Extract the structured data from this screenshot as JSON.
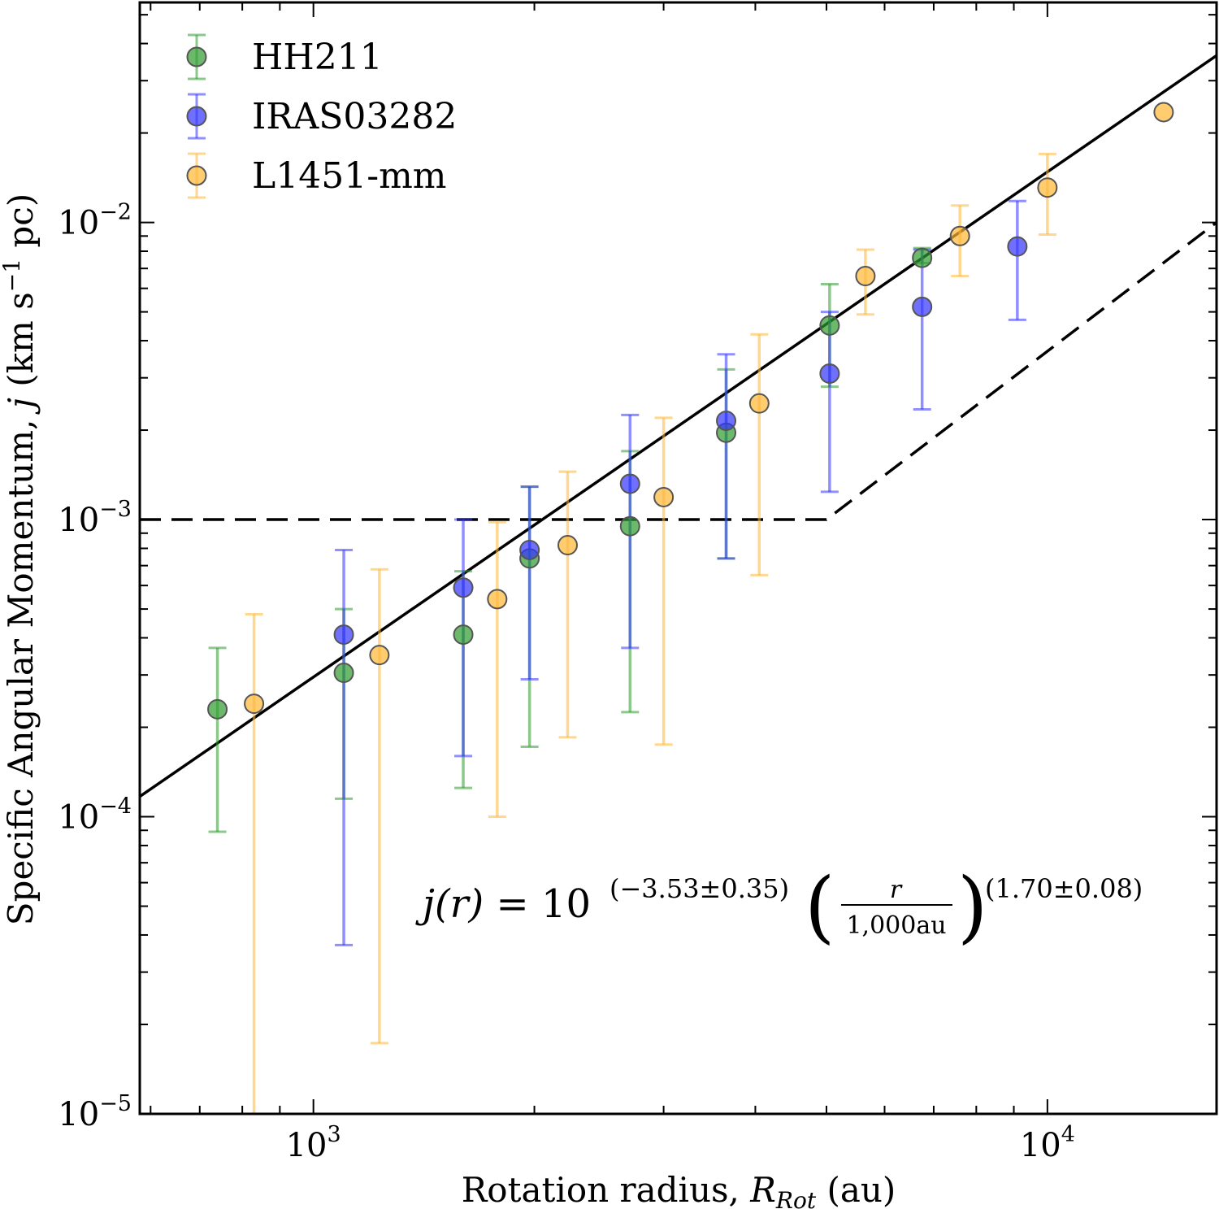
{
  "chart_data": {
    "type": "scatter",
    "x_scale": "log",
    "y_scale": "log",
    "xlim": [
      580,
      17000
    ],
    "ylim": [
      1e-05,
      0.055
    ],
    "xlabel": "Rotation radius, ",
    "xlabel_math": "R",
    "xlabel_sub": "Rot",
    "xlabel_unit": " (au)",
    "ylabel": "Specific Angular Momentum, ",
    "ylabel_math": "j",
    "ylabel_unit": " (km s",
    "ylabel_unit_exp": "−1",
    "ylabel_unit_end": " pc)",
    "x_ticks": [
      {
        "value": 1000,
        "base": "10",
        "exp": "3"
      },
      {
        "value": 10000,
        "base": "10",
        "exp": "4"
      }
    ],
    "y_ticks": [
      {
        "value": 1e-05,
        "base": "10",
        "exp": "−5"
      },
      {
        "value": 0.0001,
        "base": "10",
        "exp": "−4"
      },
      {
        "value": 0.001,
        "base": "10",
        "exp": "−3"
      },
      {
        "value": 0.01,
        "base": "10",
        "exp": "−2"
      }
    ],
    "legend_position": "top-left",
    "series": [
      {
        "name": "HH211",
        "color": "#2e9b2e",
        "points": [
          {
            "x": 740,
            "y": 0.00023,
            "lo": 8.9e-05,
            "hi": 0.00037
          },
          {
            "x": 1100,
            "y": 0.000305,
            "lo": 0.000115,
            "hi": 0.0005
          },
          {
            "x": 1600,
            "y": 0.00041,
            "lo": 0.000125,
            "hi": 0.00067
          },
          {
            "x": 1970,
            "y": 0.00074,
            "lo": 0.000172,
            "hi": 0.00129
          },
          {
            "x": 2700,
            "y": 0.00095,
            "lo": 0.000225,
            "hi": 0.0017
          },
          {
            "x": 3650,
            "y": 0.00196,
            "lo": 0.00074,
            "hi": 0.0032
          },
          {
            "x": 5050,
            "y": 0.0045,
            "lo": 0.0028,
            "hi": 0.0062
          },
          {
            "x": 6750,
            "y": 0.0076,
            "lo": 0.0073,
            "hi": 0.0082
          }
        ]
      },
      {
        "name": "IRAS03282",
        "color": "#3333ff",
        "points": [
          {
            "x": 1100,
            "y": 0.00041,
            "lo": 3.7e-05,
            "hi": 0.00079
          },
          {
            "x": 1600,
            "y": 0.00059,
            "lo": 0.00016,
            "hi": 0.001
          },
          {
            "x": 1970,
            "y": 0.00079,
            "lo": 0.00029,
            "hi": 0.00129
          },
          {
            "x": 2700,
            "y": 0.00132,
            "lo": 0.00037,
            "hi": 0.00225
          },
          {
            "x": 3650,
            "y": 0.00215,
            "lo": 0.00074,
            "hi": 0.0036
          },
          {
            "x": 5050,
            "y": 0.0031,
            "lo": 0.00124,
            "hi": 0.005
          },
          {
            "x": 6750,
            "y": 0.0052,
            "lo": 0.00235,
            "hi": 0.0081
          },
          {
            "x": 9100,
            "y": 0.0083,
            "lo": 0.0047,
            "hi": 0.0118
          }
        ]
      },
      {
        "name": "L1451-mm",
        "color": "#ffb733",
        "points": [
          {
            "x": 830,
            "y": 0.00024,
            "lo": 1e-05,
            "hi": 0.00048
          },
          {
            "x": 1230,
            "y": 0.00035,
            "lo": 1.73e-05,
            "hi": 0.00068
          },
          {
            "x": 1780,
            "y": 0.00054,
            "lo": 0.0001,
            "hi": 0.00098
          },
          {
            "x": 2220,
            "y": 0.00082,
            "lo": 0.000185,
            "hi": 0.00145
          },
          {
            "x": 3000,
            "y": 0.00119,
            "lo": 0.000175,
            "hi": 0.0022
          },
          {
            "x": 4050,
            "y": 0.00246,
            "lo": 0.00065,
            "hi": 0.0042
          },
          {
            "x": 5650,
            "y": 0.0066,
            "lo": 0.0049,
            "hi": 0.0081
          },
          {
            "x": 7600,
            "y": 0.009,
            "lo": 0.0066,
            "hi": 0.0114
          },
          {
            "x": 10000,
            "y": 0.0131,
            "lo": 0.0091,
            "hi": 0.017
          },
          {
            "x": 14400,
            "y": 0.0235,
            "lo": 0.0235,
            "hi": 0.0235
          }
        ]
      }
    ],
    "fit_line": {
      "log_amplitude": -3.53,
      "slope": 1.7,
      "x_norm": 1000,
      "style": "solid"
    },
    "dashed_line": [
      {
        "x": 580,
        "y": 0.001
      },
      {
        "x": 5000,
        "y": 0.001
      },
      {
        "x": 17000,
        "y": 0.01
      }
    ],
    "equation": {
      "lhs": "j(r)",
      "equals": " = 10",
      "exp1": "(−3.53±0.35)",
      "numerator": "r",
      "denominator": "1,000au",
      "exp2": "(1.70±0.08)"
    }
  }
}
